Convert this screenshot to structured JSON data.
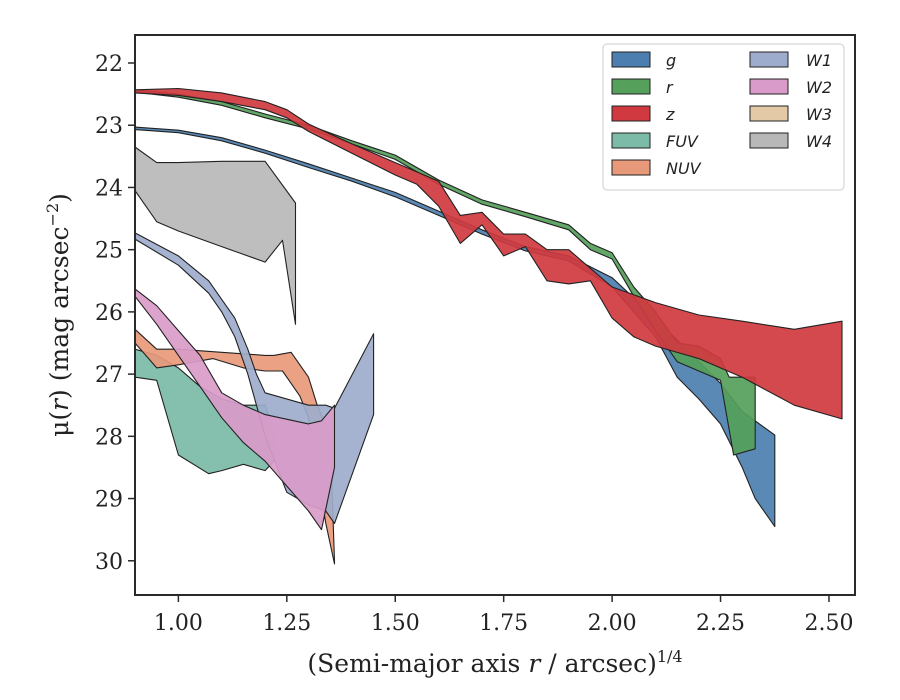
{
  "chart_data": {
    "type": "area",
    "xlabel_prefix": "(Semi-major axis ",
    "xlabel_var": "r",
    "xlabel_suffix": " / arcsec)",
    "xlabel_sup": "1/4",
    "ylabel_prefix": "μ(",
    "ylabel_var": "r",
    "ylabel_suffix": ") (mag arcsec",
    "ylabel_sup": "−2",
    "ylabel_close": ")",
    "xlim": [
      0.9,
      2.56
    ],
    "ylim": [
      30.55,
      21.55
    ],
    "y_inverted": true,
    "xticks": [
      1.0,
      1.25,
      1.5,
      1.75,
      2.0,
      2.25,
      2.5
    ],
    "xtick_labels": [
      "1.00",
      "1.25",
      "1.50",
      "1.75",
      "2.00",
      "2.25",
      "2.50"
    ],
    "yticks": [
      22,
      23,
      24,
      25,
      26,
      27,
      28,
      29,
      30
    ],
    "ytick_labels": [
      "22",
      "23",
      "24",
      "25",
      "26",
      "27",
      "28",
      "29",
      "30"
    ],
    "grid": false,
    "legend_placement": "top-right",
    "series": [
      {
        "name": "g",
        "color": "#4c7fb0",
        "upper": [
          [
            0.9,
            23.03
          ],
          [
            1.0,
            23.08
          ],
          [
            1.1,
            23.2
          ],
          [
            1.2,
            23.4
          ],
          [
            1.3,
            23.62
          ],
          [
            1.4,
            23.85
          ],
          [
            1.5,
            24.08
          ],
          [
            1.6,
            24.38
          ],
          [
            1.7,
            24.68
          ],
          [
            1.8,
            24.95
          ],
          [
            1.9,
            25.1
          ],
          [
            2.0,
            25.45
          ],
          [
            2.1,
            26.1
          ],
          [
            2.2,
            26.8
          ],
          [
            2.25,
            27.15
          ],
          [
            2.3,
            27.6
          ],
          [
            2.375,
            27.98
          ]
        ],
        "lower": [
          [
            0.9,
            23.07
          ],
          [
            1.0,
            23.12
          ],
          [
            1.1,
            23.25
          ],
          [
            1.2,
            23.45
          ],
          [
            1.3,
            23.68
          ],
          [
            1.4,
            23.9
          ],
          [
            1.5,
            24.15
          ],
          [
            1.6,
            24.45
          ],
          [
            1.7,
            24.75
          ],
          [
            1.8,
            25.02
          ],
          [
            1.9,
            25.18
          ],
          [
            2.0,
            25.6
          ],
          [
            2.1,
            26.4
          ],
          [
            2.15,
            27.05
          ],
          [
            2.2,
            27.4
          ],
          [
            2.25,
            27.8
          ],
          [
            2.3,
            28.5
          ],
          [
            2.33,
            29.0
          ],
          [
            2.375,
            29.45
          ]
        ]
      },
      {
        "name": "r",
        "color": "#55a05b",
        "upper": [
          [
            0.9,
            22.43
          ],
          [
            1.0,
            22.5
          ],
          [
            1.1,
            22.62
          ],
          [
            1.2,
            22.82
          ],
          [
            1.3,
            23.0
          ],
          [
            1.4,
            23.25
          ],
          [
            1.5,
            23.48
          ],
          [
            1.6,
            23.88
          ],
          [
            1.7,
            24.2
          ],
          [
            1.8,
            24.4
          ],
          [
            1.9,
            24.6
          ],
          [
            1.95,
            24.9
          ],
          [
            2.0,
            25.05
          ],
          [
            2.05,
            25.6
          ],
          [
            2.1,
            26.0
          ],
          [
            2.15,
            26.5
          ],
          [
            2.2,
            26.55
          ],
          [
            2.25,
            26.75
          ],
          [
            2.27,
            27.05
          ],
          [
            2.33,
            27.05
          ]
        ],
        "lower": [
          [
            0.9,
            22.47
          ],
          [
            1.0,
            22.55
          ],
          [
            1.1,
            22.68
          ],
          [
            1.2,
            22.88
          ],
          [
            1.3,
            23.06
          ],
          [
            1.4,
            23.3
          ],
          [
            1.5,
            23.55
          ],
          [
            1.6,
            23.95
          ],
          [
            1.7,
            24.27
          ],
          [
            1.8,
            24.47
          ],
          [
            1.9,
            24.68
          ],
          [
            1.95,
            25.0
          ],
          [
            2.0,
            25.15
          ],
          [
            2.05,
            25.75
          ],
          [
            2.1,
            26.3
          ],
          [
            2.15,
            26.8
          ],
          [
            2.2,
            26.95
          ],
          [
            2.25,
            27.1
          ],
          [
            2.28,
            28.3
          ],
          [
            2.33,
            28.2
          ]
        ]
      },
      {
        "name": "z",
        "color": "#d0393f",
        "upper": [
          [
            0.9,
            22.43
          ],
          [
            1.0,
            22.41
          ],
          [
            1.1,
            22.48
          ],
          [
            1.2,
            22.62
          ],
          [
            1.25,
            22.75
          ],
          [
            1.3,
            22.98
          ],
          [
            1.4,
            23.3
          ],
          [
            1.5,
            23.6
          ],
          [
            1.55,
            23.75
          ],
          [
            1.6,
            23.9
          ],
          [
            1.65,
            24.45
          ],
          [
            1.7,
            24.4
          ],
          [
            1.75,
            24.75
          ],
          [
            1.8,
            24.75
          ],
          [
            1.85,
            25.0
          ],
          [
            1.9,
            25.0
          ],
          [
            2.0,
            25.6
          ],
          [
            2.1,
            25.85
          ],
          [
            2.2,
            26.05
          ],
          [
            2.3,
            26.15
          ],
          [
            2.42,
            26.28
          ],
          [
            2.53,
            26.15
          ]
        ],
        "lower": [
          [
            0.9,
            22.48
          ],
          [
            1.0,
            22.52
          ],
          [
            1.1,
            22.62
          ],
          [
            1.2,
            22.75
          ],
          [
            1.25,
            22.88
          ],
          [
            1.3,
            23.1
          ],
          [
            1.4,
            23.45
          ],
          [
            1.5,
            23.8
          ],
          [
            1.55,
            23.95
          ],
          [
            1.6,
            24.3
          ],
          [
            1.65,
            24.9
          ],
          [
            1.7,
            24.6
          ],
          [
            1.75,
            25.1
          ],
          [
            1.8,
            24.95
          ],
          [
            1.85,
            25.5
          ],
          [
            1.9,
            25.55
          ],
          [
            1.95,
            25.5
          ],
          [
            2.0,
            26.1
          ],
          [
            2.05,
            26.4
          ],
          [
            2.1,
            26.55
          ],
          [
            2.2,
            26.75
          ],
          [
            2.3,
            27.05
          ],
          [
            2.42,
            27.5
          ],
          [
            2.53,
            27.72
          ]
        ]
      },
      {
        "name": "FUV",
        "color": "#7bbba8",
        "upper": [
          [
            0.9,
            26.6
          ],
          [
            0.95,
            26.7
          ],
          [
            1.0,
            26.9
          ],
          [
            1.05,
            27.2
          ],
          [
            1.1,
            27.4
          ],
          [
            1.15,
            27.5
          ],
          [
            1.2,
            27.5
          ],
          [
            1.22,
            27.9
          ]
        ],
        "lower": [
          [
            0.9,
            27.05
          ],
          [
            0.95,
            27.1
          ],
          [
            1.0,
            28.3
          ],
          [
            1.07,
            28.6
          ],
          [
            1.1,
            28.55
          ],
          [
            1.15,
            28.45
          ],
          [
            1.2,
            28.55
          ],
          [
            1.22,
            28.4
          ]
        ]
      },
      {
        "name": "NUV",
        "color": "#e8997a",
        "upper": [
          [
            0.9,
            26.28
          ],
          [
            0.95,
            26.6
          ],
          [
            1.0,
            26.6
          ],
          [
            1.1,
            26.65
          ],
          [
            1.2,
            26.7
          ],
          [
            1.22,
            26.7
          ],
          [
            1.26,
            26.65
          ],
          [
            1.3,
            27.05
          ],
          [
            1.32,
            27.5
          ],
          [
            1.35,
            28.0
          ],
          [
            1.36,
            30.0
          ]
        ],
        "lower": [
          [
            0.9,
            26.5
          ],
          [
            0.95,
            26.9
          ],
          [
            1.0,
            26.85
          ],
          [
            1.08,
            26.75
          ],
          [
            1.15,
            26.9
          ],
          [
            1.2,
            26.95
          ],
          [
            1.24,
            26.95
          ],
          [
            1.28,
            27.35
          ],
          [
            1.3,
            27.7
          ],
          [
            1.34,
            29.4
          ],
          [
            1.36,
            30.05
          ]
        ]
      },
      {
        "name": "W1",
        "color": "#9daccc",
        "upper": [
          [
            0.9,
            24.73
          ],
          [
            1.0,
            25.1
          ],
          [
            1.07,
            25.5
          ],
          [
            1.1,
            25.8
          ],
          [
            1.13,
            26.1
          ],
          [
            1.16,
            26.6
          ],
          [
            1.18,
            27.0
          ],
          [
            1.2,
            27.3
          ],
          [
            1.3,
            27.5
          ],
          [
            1.34,
            27.5
          ],
          [
            1.36,
            27.55
          ],
          [
            1.45,
            26.35
          ]
        ],
        "lower": [
          [
            0.9,
            24.83
          ],
          [
            1.0,
            25.25
          ],
          [
            1.07,
            25.7
          ],
          [
            1.1,
            26.0
          ],
          [
            1.13,
            26.4
          ],
          [
            1.16,
            27.0
          ],
          [
            1.2,
            28.0
          ],
          [
            1.25,
            28.9
          ],
          [
            1.3,
            29.1
          ],
          [
            1.34,
            29.2
          ],
          [
            1.36,
            29.4
          ],
          [
            1.45,
            27.65
          ]
        ]
      },
      {
        "name": "W2",
        "color": "#d99bc9",
        "upper": [
          [
            0.9,
            25.63
          ],
          [
            0.95,
            25.9
          ],
          [
            1.0,
            26.3
          ],
          [
            1.05,
            26.7
          ],
          [
            1.1,
            27.3
          ],
          [
            1.15,
            27.5
          ],
          [
            1.2,
            27.65
          ],
          [
            1.3,
            27.8
          ],
          [
            1.33,
            27.75
          ],
          [
            1.36,
            27.5
          ]
        ],
        "lower": [
          [
            0.9,
            25.75
          ],
          [
            0.95,
            26.2
          ],
          [
            1.0,
            26.7
          ],
          [
            1.05,
            27.2
          ],
          [
            1.1,
            27.7
          ],
          [
            1.15,
            28.1
          ],
          [
            1.2,
            28.4
          ],
          [
            1.25,
            28.8
          ],
          [
            1.3,
            29.2
          ],
          [
            1.33,
            29.5
          ],
          [
            1.36,
            28.5
          ]
        ]
      },
      {
        "name": "W3",
        "color": "#e3c9a6",
        "upper": [],
        "lower": []
      },
      {
        "name": "W4",
        "color": "#b8b8b8",
        "upper": [
          [
            0.9,
            23.35
          ],
          [
            0.95,
            23.6
          ],
          [
            1.0,
            23.6
          ],
          [
            1.1,
            23.58
          ],
          [
            1.2,
            23.58
          ],
          [
            1.27,
            24.25
          ]
        ],
        "lower": [
          [
            0.9,
            24.05
          ],
          [
            0.95,
            24.55
          ],
          [
            1.0,
            24.7
          ],
          [
            1.1,
            24.95
          ],
          [
            1.2,
            25.2
          ],
          [
            1.24,
            24.85
          ],
          [
            1.27,
            26.2
          ]
        ]
      }
    ]
  }
}
